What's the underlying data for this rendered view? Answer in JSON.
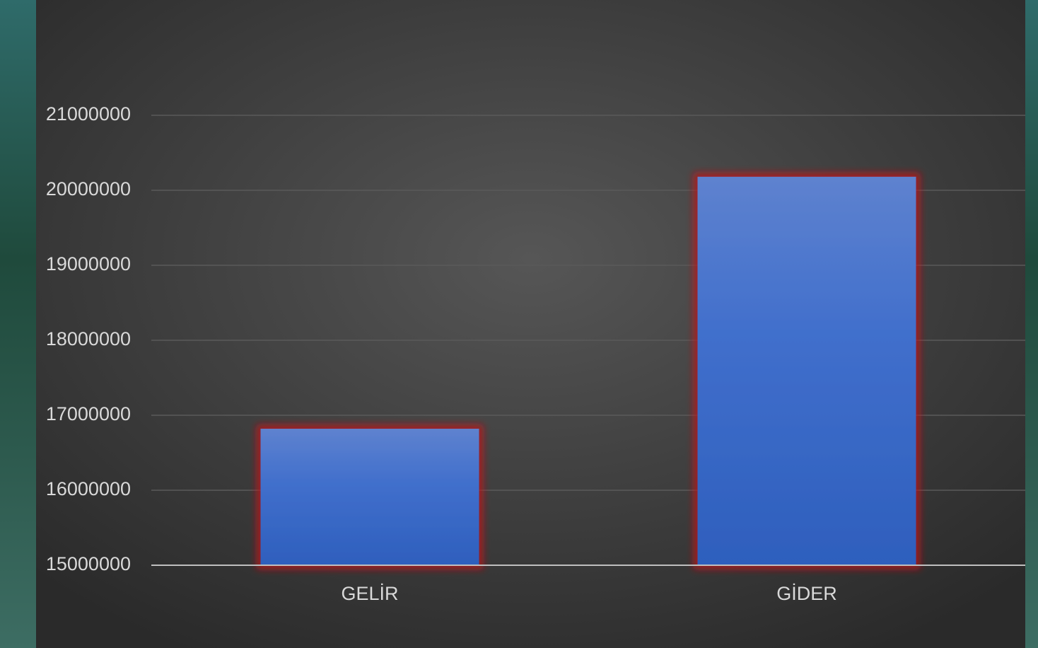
{
  "chart_data": {
    "type": "bar",
    "categories": [
      "GELİR",
      "GİDER"
    ],
    "values": [
      16820000,
      20180000
    ],
    "color": "#4472c4",
    "ylim": [
      15000000,
      21000000
    ],
    "yticks": [
      15000000,
      16000000,
      17000000,
      18000000,
      19000000,
      20000000,
      21000000
    ],
    "grid": true
  }
}
